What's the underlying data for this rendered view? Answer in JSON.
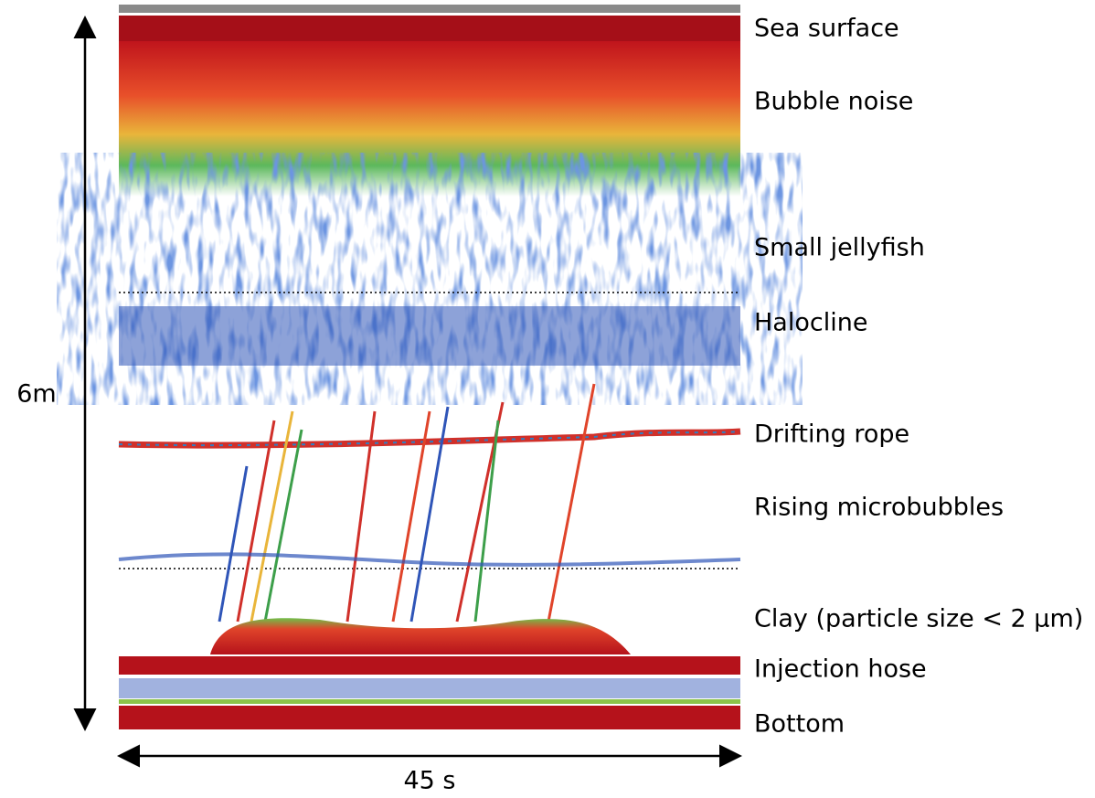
{
  "labels": [
    "Sea surface",
    "Bubble noise",
    "Small jellyfish",
    "Halocline",
    "Drifting rope",
    "Rising microbubbles",
    "Clay (particle size < 2 μm)",
    "Injection hose",
    "Bottom"
  ],
  "axes": {
    "depth": "6m",
    "time": "45 s"
  }
}
